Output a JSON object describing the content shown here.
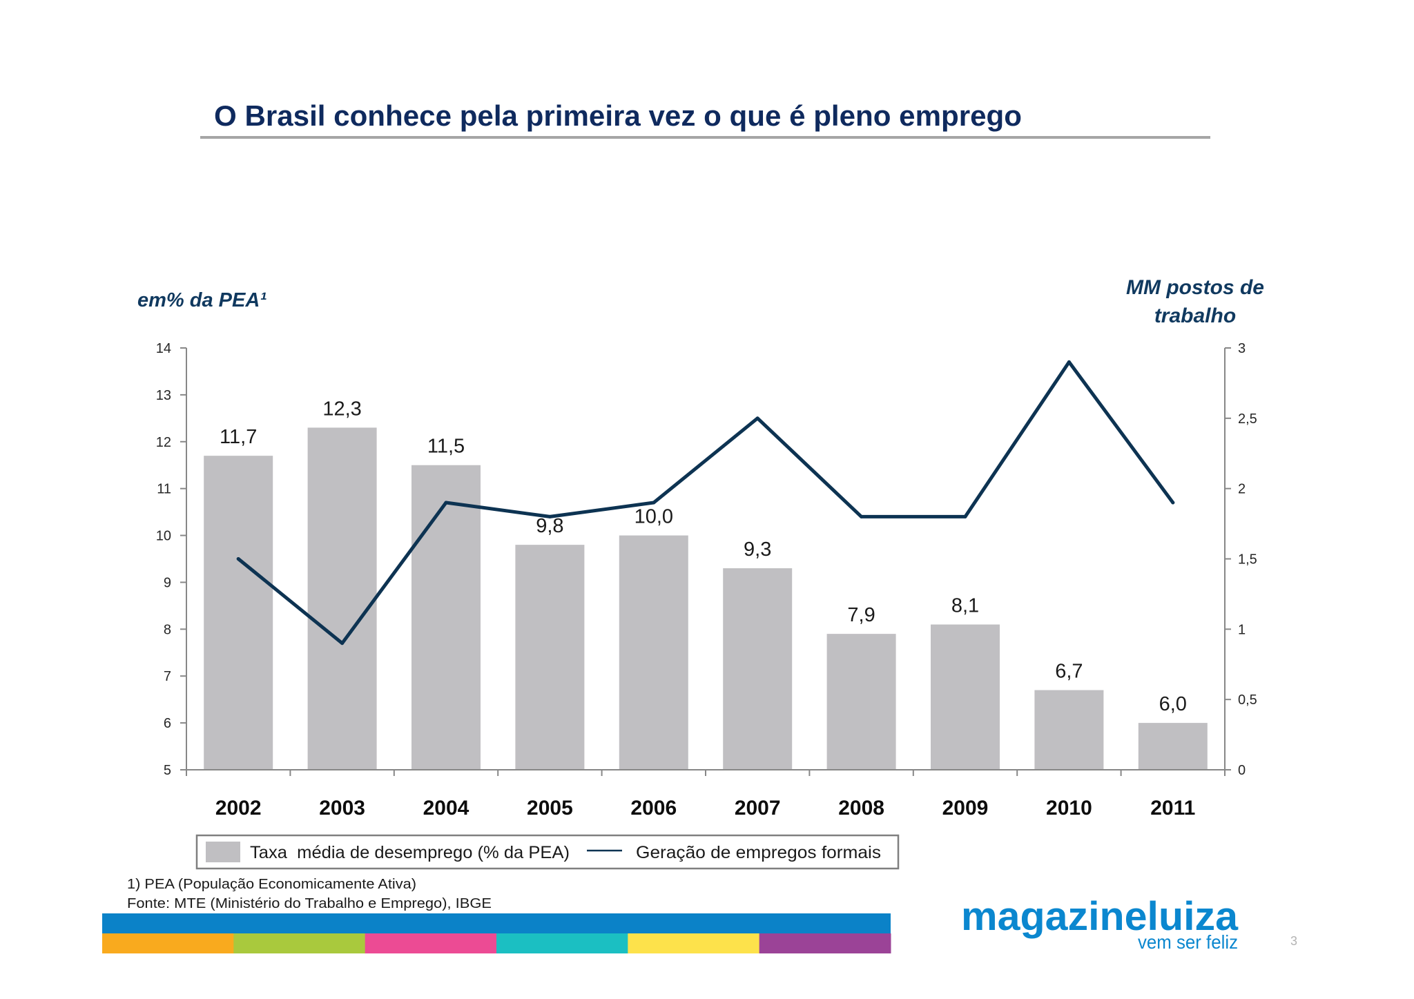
{
  "slide": {
    "title": "O Brasil conhece pela primeira vez o que é pleno emprego",
    "title_color": "#0f2a5e",
    "page_number": "3"
  },
  "chart_data": {
    "type": "bar",
    "categories": [
      "2002",
      "2003",
      "2004",
      "2005",
      "2006",
      "2007",
      "2008",
      "2009",
      "2010",
      "2011"
    ],
    "series": [
      {
        "name": "Taxa  média de desemprego (% da PEA)",
        "type": "bar",
        "axis": "left",
        "values": [
          11.7,
          12.3,
          11.5,
          9.8,
          10.0,
          9.3,
          7.9,
          8.1,
          6.7,
          6.0
        ],
        "data_labels": true,
        "color": "#c0bfc2"
      },
      {
        "name": "Geração de empregos formais",
        "type": "line",
        "axis": "right",
        "values": [
          1.5,
          0.9,
          1.9,
          1.8,
          1.9,
          2.5,
          1.8,
          1.8,
          2.9,
          1.9
        ],
        "color": "#0d3352"
      }
    ],
    "ylabel": "em% da PEA¹",
    "y2label": [
      "MM postos de",
      "trabalho"
    ],
    "ylim": [
      5,
      14
    ],
    "yticks": [
      5,
      6,
      7,
      8,
      9,
      10,
      11,
      12,
      13,
      14
    ],
    "y2lim": [
      0,
      3
    ],
    "y2ticks": [
      0,
      0.5,
      1,
      1.5,
      2,
      2.5,
      3
    ],
    "legend_position": "bottom",
    "grid": false,
    "axis_label_color": "#10395f"
  },
  "footnotes": [
    "1) PEA (População Economicamente Ativa)",
    "Fonte: MTE (Ministério do Trabalho e Emprego), IBGE"
  ],
  "logo": {
    "brand": "magazineluiza",
    "tagline": "vem ser feliz",
    "color": "#0b87cf"
  },
  "color_stripe": {
    "top": "#0b82c8",
    "segments": [
      "#f9aa1e",
      "#a9c93d",
      "#ec4b94",
      "#1bbfc2",
      "#fde24b",
      "#9b4397"
    ]
  }
}
